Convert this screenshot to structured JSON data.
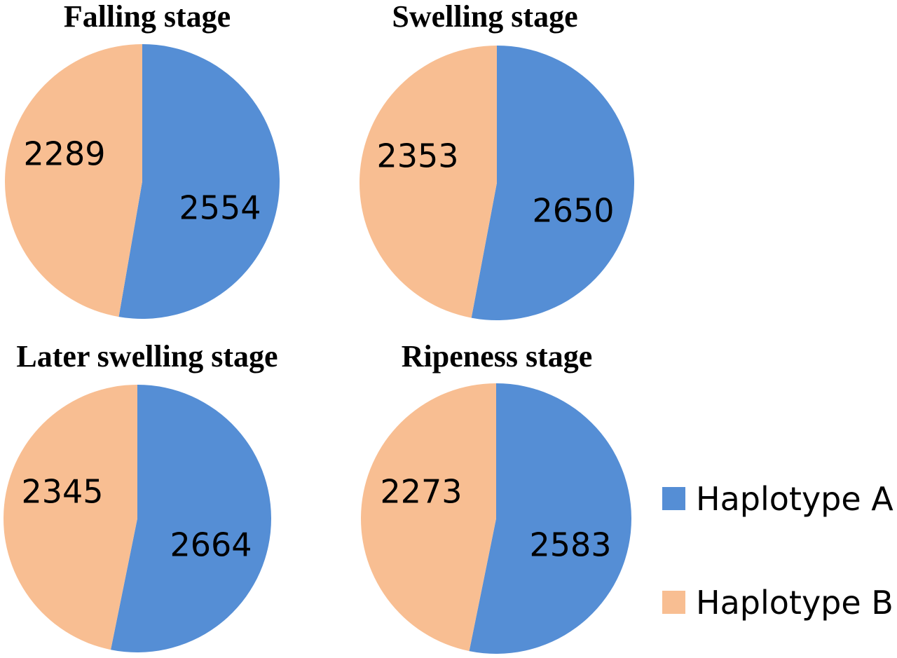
{
  "chart_data": [
    {
      "type": "pie",
      "title": "Falling stage",
      "series": [
        {
          "name": "Haplotype A",
          "value": 2554
        },
        {
          "name": "Haplotype B",
          "value": 2289
        }
      ]
    },
    {
      "type": "pie",
      "title": "Swelling stage",
      "series": [
        {
          "name": "Haplotype A",
          "value": 2650
        },
        {
          "name": "Haplotype B",
          "value": 2353
        }
      ]
    },
    {
      "type": "pie",
      "title": "Later swelling stage",
      "series": [
        {
          "name": "Haplotype A",
          "value": 2664
        },
        {
          "name": "Haplotype B",
          "value": 2345
        }
      ]
    },
    {
      "type": "pie",
      "title": "Ripeness stage",
      "series": [
        {
          "name": "Haplotype A",
          "value": 2583
        },
        {
          "name": "Haplotype B",
          "value": 2273
        }
      ]
    }
  ],
  "legend": {
    "placement": "bottom-right",
    "items": [
      {
        "label": "Haplotype A",
        "color": "#558ed5"
      },
      {
        "label": "Haplotype B",
        "color": "#f8be92"
      }
    ]
  },
  "colors": {
    "Haplotype A": "#558ed5",
    "Haplotype B": "#f8be92"
  }
}
